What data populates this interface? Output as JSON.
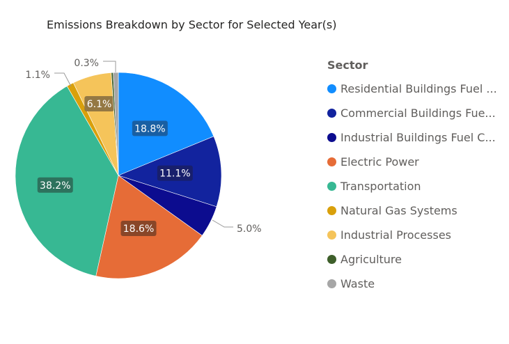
{
  "chart_data": {
    "type": "pie",
    "title": "Emissions Breakdown by Sector for Selected Year(s)",
    "legend_title": "Sector",
    "legend_position": "right",
    "slices": [
      {
        "name": "Residential Buildings Fuel Combustion",
        "legend_label": "Residential Buildings Fuel ...",
        "value": 18.8,
        "label": "18.8%",
        "color": "#118DFF",
        "label_bg": "#1B5A99",
        "inside": true
      },
      {
        "name": "Commercial Buildings Fuel Combustion",
        "legend_label": "Commercial Buildings Fue...",
        "value": 11.1,
        "label": "11.1%",
        "color": "#12239E",
        "label_bg": "#1A1F66",
        "inside": true
      },
      {
        "name": "Industrial Buildings Fuel Combustion",
        "legend_label": "Industrial Buildings Fuel C...",
        "value": 5.0,
        "label": "5.0%",
        "color": "#0C0C8F",
        "label_bg": "",
        "inside": false
      },
      {
        "name": "Electric Power",
        "legend_label": "Electric Power",
        "value": 18.6,
        "label": "18.6%",
        "color": "#E66C37",
        "label_bg": "#7E4227",
        "inside": true
      },
      {
        "name": "Transportation",
        "legend_label": "Transportation",
        "value": 38.2,
        "label": "38.2%",
        "color": "#37B893",
        "label_bg": "#2C6A58",
        "inside": true
      },
      {
        "name": "Natural Gas Systems",
        "legend_label": "Natural Gas Systems",
        "value": 1.1,
        "label": "1.1%",
        "color": "#D9A00B",
        "label_bg": "",
        "inside": false
      },
      {
        "name": "Industrial Processes",
        "legend_label": "Industrial Processes",
        "value": 6.1,
        "label": "6.1%",
        "color": "#F5C45A",
        "label_bg": "#8A7040",
        "inside": true
      },
      {
        "name": "Agriculture",
        "legend_label": "Agriculture",
        "value": 0.3,
        "label": "0.3%",
        "color": "#3E5F2A",
        "label_bg": "",
        "inside": false
      },
      {
        "name": "Waste",
        "legend_label": "Waste",
        "value": 0.8,
        "label": "",
        "color": "#A6A6A6",
        "label_bg": "",
        "inside": false
      }
    ]
  }
}
